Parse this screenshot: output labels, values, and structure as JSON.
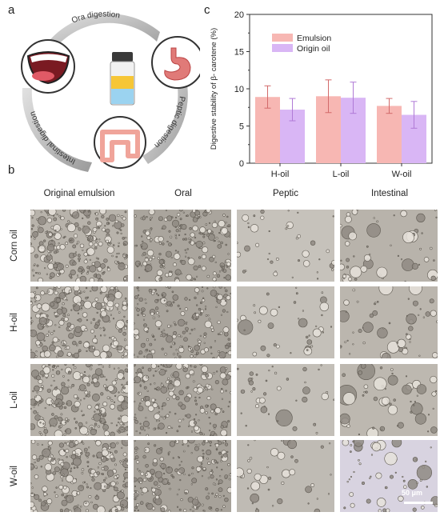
{
  "panels": {
    "a": "a",
    "b": "b",
    "c": "c"
  },
  "digestion_cycle": {
    "oral": "Ora digestion",
    "peptic": "Peptic digestion",
    "intestinal": "Intestinal digestion"
  },
  "micrographs": {
    "columns": [
      "Original emulsion",
      "Oral",
      "Peptic",
      "Intestinal"
    ],
    "rows": [
      "Corn oil",
      "H-oil",
      "L-oil",
      "W-oil"
    ],
    "scale_bar": "50 μm"
  },
  "chart_data": {
    "type": "bar",
    "categories": [
      "H-oil",
      "L-oil",
      "W-oil"
    ],
    "series": [
      {
        "name": "Emulsion",
        "values": [
          8.9,
          9.0,
          7.7
        ],
        "errors": [
          1.5,
          2.2,
          1.0
        ],
        "color": "#f7b7b3"
      },
      {
        "name": "Origin oil",
        "values": [
          7.2,
          8.8,
          6.5
        ],
        "errors": [
          1.5,
          2.1,
          1.8
        ],
        "color": "#d9b6f5"
      }
    ],
    "ylabel": "Digestive stability of β- carotene (%)",
    "ylim": [
      0,
      20
    ],
    "yticks": [
      0,
      5,
      10,
      15,
      20
    ],
    "legend": "top-left",
    "grid": false
  },
  "colors": {
    "axis": "#333333",
    "error": "#d26a6a",
    "error2": "#b07ad6"
  }
}
